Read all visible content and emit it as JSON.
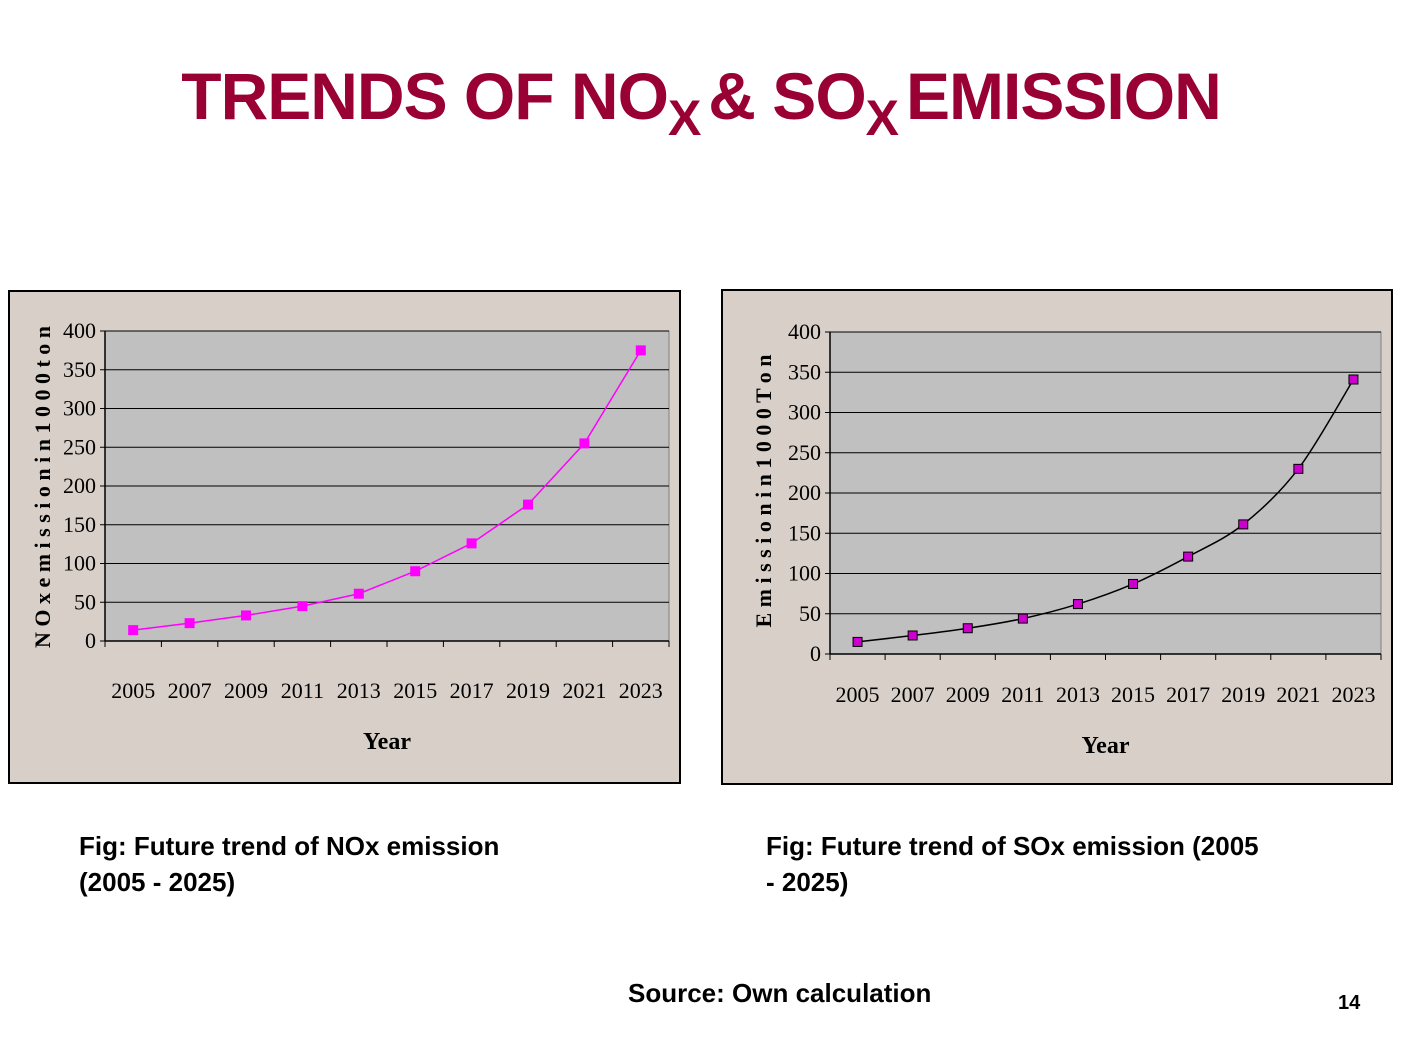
{
  "slide": {
    "title_prefix": "TRENDS OF NO",
    "title_sub1": "X",
    "title_mid": "& SO",
    "title_sub2": "X",
    "title_suffix": "EMISSION",
    "title_color": "#990033",
    "source": "Source: Own calculation",
    "page_number": "14"
  },
  "captions": {
    "left_line1": "Fig:  Future trend of NOx  emission",
    "left_line2": "(2005 - 2025)",
    "right_line1": "Fig:  Future trend of SOx  emission (2005",
    "right_line2": "- 2025)"
  },
  "chart_data": [
    {
      "type": "line",
      "title": "",
      "xlabel": "Year",
      "ylabel": "N O x  e m i s s i o n  i n  1 0 0 0  t o n",
      "x": [
        "2005",
        "2007",
        "2009",
        "2011",
        "2013",
        "2015",
        "2017",
        "2019",
        "2021",
        "2023"
      ],
      "series": [
        {
          "values": [
            14,
            23,
            33,
            45,
            61,
            90,
            126,
            176,
            255,
            375
          ],
          "color": "#ff00ff"
        }
      ],
      "yticks": [
        "0",
        "50",
        "100",
        "150",
        "200",
        "250",
        "300",
        "350",
        "400"
      ],
      "ylim": [
        0,
        400
      ],
      "grid": true,
      "line_color": "#ff00ff",
      "marker_color": "#ff00ff",
      "marker_edge": "#ff00ff",
      "smooth": false
    },
    {
      "type": "line",
      "title": "",
      "xlabel": "Year",
      "ylabel": "E m i s s i o n  i n  1 0 0 0  T o n",
      "x": [
        "2005",
        "2007",
        "2009",
        "2011",
        "2013",
        "2015",
        "2017",
        "2019",
        "2021",
        "2023"
      ],
      "series": [
        {
          "values": [
            15,
            23,
            32,
            44,
            62,
            87,
            121,
            161,
            230,
            341
          ],
          "color": "#000000"
        }
      ],
      "yticks": [
        "0",
        "50",
        "100",
        "150",
        "200",
        "250",
        "300",
        "350",
        "400"
      ],
      "ylim": [
        0,
        400
      ],
      "grid": true,
      "line_color": "#000000",
      "marker_color": "#cc00cc",
      "marker_edge": "#000000",
      "smooth": true
    }
  ]
}
